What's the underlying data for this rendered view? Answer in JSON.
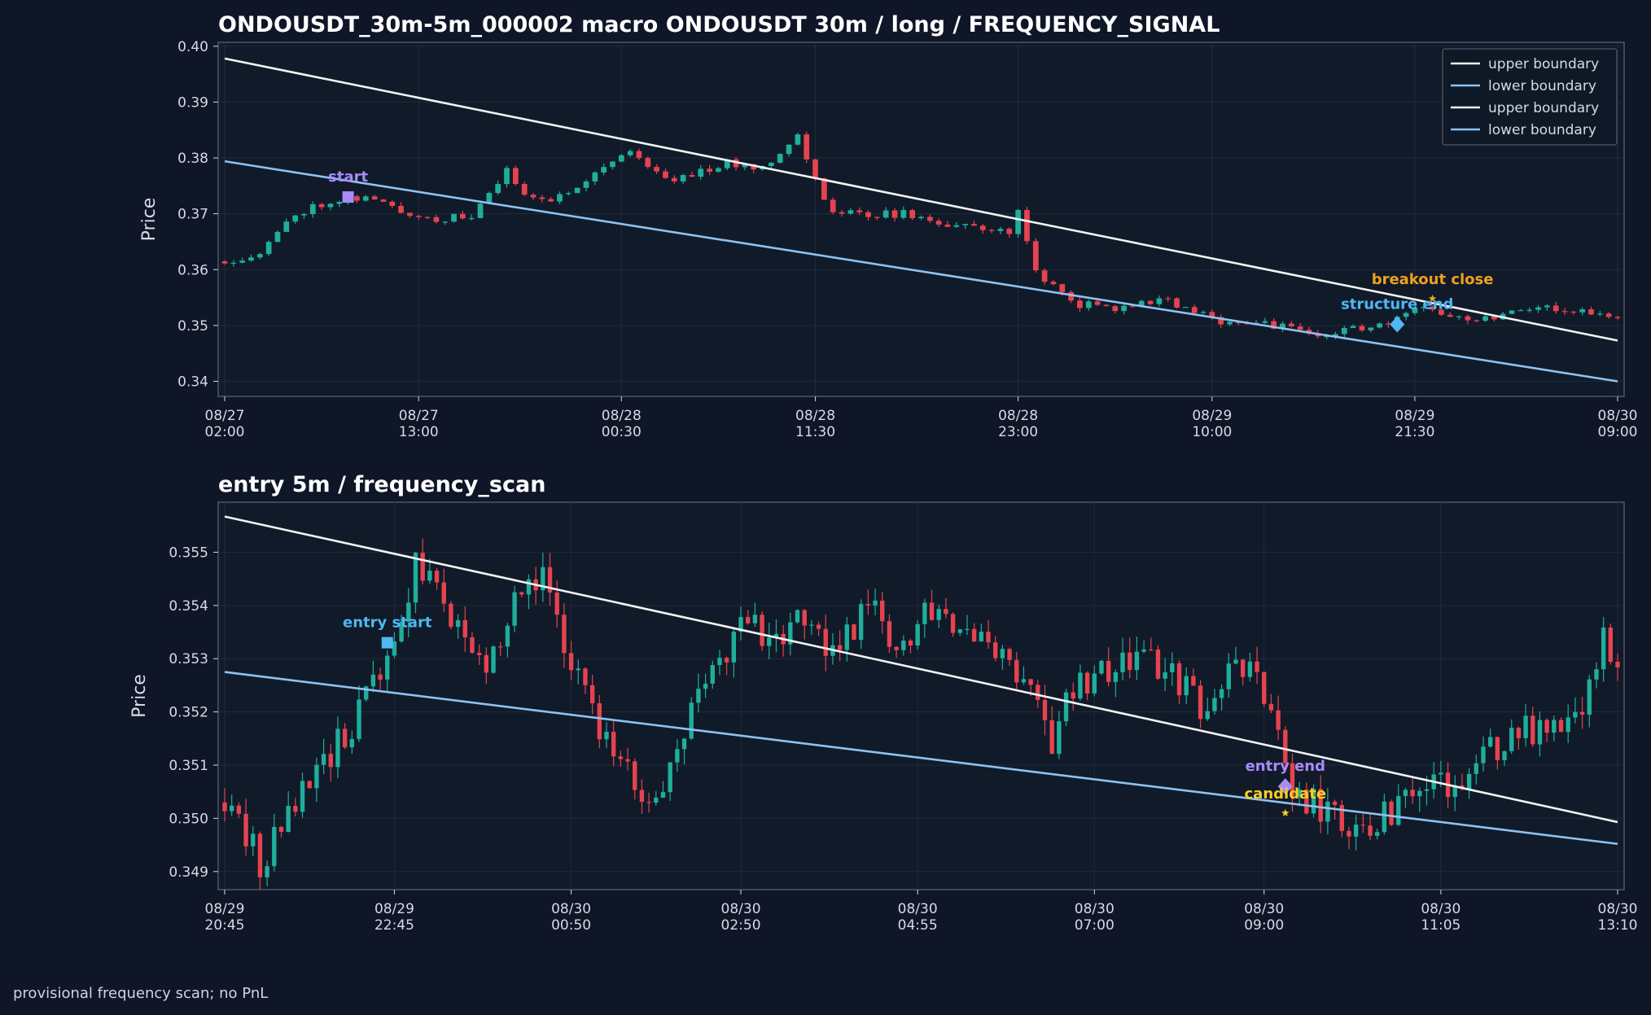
{
  "footer": "provisional frequency scan; no PnL",
  "colors": {
    "background": "#0e1627",
    "panel": "#111a29",
    "grid": "#1f2a3b",
    "axis": "#5d6777",
    "text": "#d6dbe3",
    "title": "#ffffff",
    "up_candle": "#1fae9b",
    "down_candle": "#e5434f",
    "upper_boundary": "#f2f2f2",
    "lower_boundary": "#8ec2f2"
  },
  "chart_data": [
    {
      "type": "candlestick",
      "title": "ONDOUSDT_30m-5m_000002 macro ONDOUSDT 30m / long / FREQUENCY_SIGNAL",
      "xlabel": "",
      "ylabel": "Price",
      "interval_minutes": 30,
      "start_time": "08/27 02:00",
      "end_time": "08/30 09:00",
      "x_ticks": [
        "08/27\n02:00",
        "08/27\n13:00",
        "08/28\n00:30",
        "08/28\n11:30",
        "08/28\n23:00",
        "08/29\n10:00",
        "08/29\n21:30",
        "08/30\n09:00"
      ],
      "ylim": [
        0.3373,
        0.4007
      ],
      "y_ticks": [
        "0.40",
        "0.39",
        "0.38",
        "0.37",
        "0.36",
        "0.35",
        "0.34"
      ],
      "grid": true,
      "legend": {
        "position": "top-right",
        "entries": [
          {
            "label": "upper boundary",
            "color": "#f2f2f2"
          },
          {
            "label": "lower boundary",
            "color": "#8ec2f2"
          },
          {
            "label": "upper boundary",
            "color": "#f2f2f2"
          },
          {
            "label": "lower boundary",
            "color": "#8ec2f2"
          }
        ]
      },
      "series": [
        {
          "name": "upper boundary",
          "type": "line",
          "color": "#f2f2f2",
          "points": [
            [
              "08/27 02:00",
              0.3978
            ],
            [
              "08/30 09:00",
              0.3473
            ]
          ]
        },
        {
          "name": "lower boundary",
          "type": "line",
          "color": "#8ec2f2",
          "points": [
            [
              "08/27 02:00",
              0.3794
            ],
            [
              "08/30 09:00",
              0.34
            ]
          ]
        }
      ],
      "close_anchors": [
        [
          "08/27 02:00",
          0.3615
        ],
        [
          "08/27 04:00",
          0.363
        ],
        [
          "08/27 06:00",
          0.37
        ],
        [
          "08/27 08:00",
          0.3725
        ],
        [
          "08/27 10:00",
          0.373
        ],
        [
          "08/27 12:00",
          0.3705
        ],
        [
          "08/27 14:00",
          0.369
        ],
        [
          "08/27 16:00",
          0.3695
        ],
        [
          "08/27 18:00",
          0.3775
        ],
        [
          "08/27 19:00",
          0.374
        ],
        [
          "08/27 20:30",
          0.372
        ],
        [
          "08/27 23:00",
          0.3775
        ],
        [
          "08/28 01:00",
          0.3815
        ],
        [
          "08/28 03:00",
          0.376
        ],
        [
          "08/28 06:30",
          0.379
        ],
        [
          "08/28 08:30",
          0.3785
        ],
        [
          "08/28 10:30",
          0.384
        ],
        [
          "08/28 12:00",
          0.372
        ],
        [
          "08/28 13:00",
          0.37
        ],
        [
          "08/28 16:30",
          0.37
        ],
        [
          "08/28 19:00",
          0.368
        ],
        [
          "08/28 22:30",
          0.367
        ],
        [
          "08/28 23:00",
          0.37
        ],
        [
          "08/29 00:00",
          0.36
        ],
        [
          "08/29 02:00",
          0.354
        ],
        [
          "08/29 05:00",
          0.353
        ],
        [
          "08/29 07:00",
          0.355
        ],
        [
          "08/29 10:00",
          0.351
        ],
        [
          "08/29 13:00",
          0.3505
        ],
        [
          "08/29 16:00",
          0.348
        ],
        [
          "08/29 18:00",
          0.3495
        ],
        [
          "08/29 20:00",
          0.35
        ],
        [
          "08/29 22:00",
          0.3535
        ],
        [
          "08/30 01:00",
          0.351
        ],
        [
          "08/30 04:00",
          0.3535
        ],
        [
          "08/30 07:00",
          0.3525
        ],
        [
          "08/30 09:00",
          0.351
        ]
      ],
      "annotations": [
        {
          "label": "start",
          "marker": "square",
          "color": "#a78bfa",
          "x": "08/27 09:00",
          "y": 0.373
        },
        {
          "label": "structure end",
          "marker": "diamond",
          "color": "#4fb8f0",
          "x": "08/29 20:30",
          "y": 0.3502
        },
        {
          "label": "breakout close",
          "marker": "star",
          "color": "#f0a020",
          "x": "08/29 22:30",
          "y": 0.3548
        }
      ]
    },
    {
      "type": "candlestick",
      "title": "entry 5m / frequency_scan",
      "xlabel": "",
      "ylabel": "Price",
      "interval_minutes": 5,
      "start_time": "08/29 20:45",
      "end_time": "08/30 13:10",
      "x_ticks": [
        "08/29\n20:45",
        "08/29\n22:45",
        "08/30\n00:50",
        "08/30\n02:50",
        "08/30\n04:55",
        "08/30\n07:00",
        "08/30\n09:00",
        "08/30\n11:05",
        "08/30\n13:10"
      ],
      "ylim": [
        0.34866,
        0.35594
      ],
      "y_ticks": [
        "0.355",
        "0.354",
        "0.353",
        "0.352",
        "0.351",
        "0.350",
        "0.349"
      ],
      "grid": true,
      "series": [
        {
          "name": "upper boundary",
          "type": "line",
          "color": "#f2f2f2",
          "points": [
            [
              "08/29 20:45",
              0.35567
            ],
            [
              "08/30 13:10",
              0.34993
            ]
          ]
        },
        {
          "name": "lower boundary",
          "type": "line",
          "color": "#8ec2f2",
          "points": [
            [
              "08/29 20:45",
              0.35275
            ],
            [
              "08/30 13:10",
              0.34952
            ]
          ]
        }
      ],
      "close_anchors": [
        [
          "08/29 20:45",
          0.3503
        ],
        [
          "08/29 21:10",
          0.3492
        ],
        [
          "08/29 21:30",
          0.35
        ],
        [
          "08/29 22:00",
          0.3512
        ],
        [
          "08/29 22:30",
          0.3524
        ],
        [
          "08/29 22:45",
          0.3533
        ],
        [
          "08/29 23:00",
          0.3548
        ],
        [
          "08/29 23:20",
          0.3539
        ],
        [
          "08/29 23:50",
          0.3529
        ],
        [
          "08/30 00:10",
          0.3542
        ],
        [
          "08/30 00:30",
          0.3545
        ],
        [
          "08/30 00:50",
          0.353
        ],
        [
          "08/30 01:20",
          0.3512
        ],
        [
          "08/30 01:40",
          0.3504
        ],
        [
          "08/30 02:00",
          0.3508
        ],
        [
          "08/30 02:20",
          0.3525
        ],
        [
          "08/30 02:50",
          0.3535
        ],
        [
          "08/30 03:30",
          0.3536
        ],
        [
          "08/30 04:00",
          0.3532
        ],
        [
          "08/30 04:20",
          0.354
        ],
        [
          "08/30 04:40",
          0.3533
        ],
        [
          "08/30 05:10",
          0.3541
        ],
        [
          "08/30 05:40",
          0.3532
        ],
        [
          "08/30 06:10",
          0.3526
        ],
        [
          "08/30 06:30",
          0.3515
        ],
        [
          "08/30 06:50",
          0.3526
        ],
        [
          "08/30 07:20",
          0.353
        ],
        [
          "08/30 07:50",
          0.3528
        ],
        [
          "08/30 08:20",
          0.352
        ],
        [
          "08/30 08:40",
          0.353
        ],
        [
          "08/30 09:00",
          0.3523
        ],
        [
          "08/30 09:20",
          0.3506
        ],
        [
          "08/30 09:40",
          0.3502
        ],
        [
          "08/30 10:10",
          0.3498
        ],
        [
          "08/30 10:40",
          0.3503
        ],
        [
          "08/30 11:05",
          0.3506
        ],
        [
          "08/30 11:30",
          0.351
        ],
        [
          "08/30 12:00",
          0.3518
        ],
        [
          "08/30 12:20",
          0.3515
        ],
        [
          "08/30 12:40",
          0.3518
        ],
        [
          "08/30 13:00",
          0.3534
        ],
        [
          "08/30 13:10",
          0.353
        ]
      ],
      "annotations": [
        {
          "label": "entry start",
          "marker": "square",
          "color": "#4fb8f0",
          "x": "08/29 22:40",
          "y": 0.3533
        },
        {
          "label": "entry end",
          "marker": "diamond",
          "color": "#a78bfa",
          "x": "08/30 09:15",
          "y": 0.3506
        },
        {
          "label": "candidate",
          "marker": "star",
          "color": "#f5d020",
          "x": "08/30 09:15",
          "y": 0.3501
        }
      ]
    }
  ]
}
